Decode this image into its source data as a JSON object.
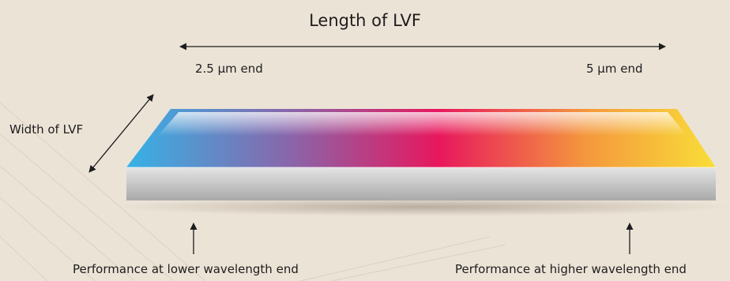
{
  "diagram": {
    "title": "Length of LVF",
    "left_end_label": "2.5 µm end",
    "right_end_label": "5 µm end",
    "width_label": "Width of LVF",
    "bottom_left_label": "Performance at lower wavelength end",
    "bottom_right_label": "Performance at higher wavelength end"
  },
  "colors": {
    "background": "#ece3d7",
    "gradient": [
      "#36b2e6",
      "#8a65aa",
      "#e8175d",
      "#f4983d",
      "#f9de38"
    ],
    "side_face": "#cbcbcb",
    "arrow": "#1d1d1d"
  }
}
